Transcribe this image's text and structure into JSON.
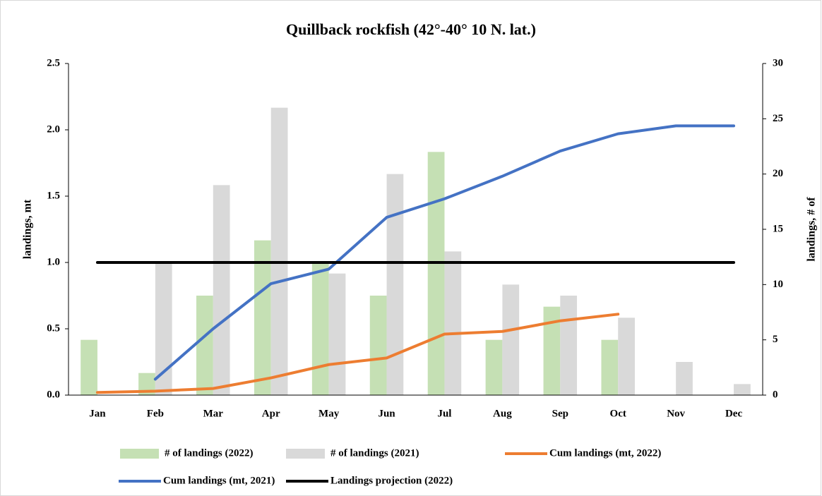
{
  "chart_data": {
    "type": "bar_line_combo",
    "title": "Quillback rockfish (42°-40° 10 N. lat.)",
    "y_label": "landings, mt",
    "y2_label": "landings, # of",
    "categories": [
      "Jan",
      "Feb",
      "Mar",
      "Apr",
      "May",
      "Jun",
      "Jul",
      "Aug",
      "Sep",
      "Oct",
      "Nov",
      "Dec"
    ],
    "ylim": [
      0,
      2.5
    ],
    "yticks": [
      {
        "value": 0,
        "label": "0.0"
      },
      {
        "value": 0.5,
        "label": "0.5"
      },
      {
        "value": 1,
        "label": "1.0"
      },
      {
        "value": 1.5,
        "label": "1.5"
      },
      {
        "value": 2,
        "label": "2.0"
      },
      {
        "value": 2.5,
        "label": "2.5"
      }
    ],
    "y2lim": [
      0,
      30
    ],
    "y2ticks": [
      0,
      5,
      10,
      15,
      20,
      25,
      30
    ],
    "series": [
      {
        "name": "# of landings (2022)",
        "kind": "bar",
        "axis": "y2",
        "color": "#c5e0b4",
        "values": [
          5,
          2,
          9,
          14,
          12,
          9,
          22,
          5,
          8,
          5,
          null,
          null
        ]
      },
      {
        "name": "# of landings (2021)",
        "kind": "bar",
        "axis": "y2",
        "color": "#d9d9d9",
        "values": [
          null,
          12,
          19,
          26,
          11,
          20,
          13,
          10,
          9,
          7,
          3,
          1
        ]
      },
      {
        "name": "Cum landings (mt, 2022)",
        "kind": "line",
        "color": "#ed7d31",
        "values": [
          0.02,
          0.03,
          0.05,
          0.13,
          0.23,
          0.28,
          0.46,
          0.48,
          0.56,
          0.61,
          null,
          null
        ]
      },
      {
        "name": "Cum landings (mt, 2021)",
        "kind": "line",
        "color": "#4472c4",
        "values": [
          null,
          0.12,
          0.5,
          0.84,
          0.95,
          1.34,
          1.48,
          1.65,
          1.84,
          1.97,
          2.03,
          2.03
        ]
      },
      {
        "name": "Landings projection (2022)",
        "kind": "line",
        "color": "#000000",
        "values": [
          1,
          1,
          1,
          1,
          1,
          1,
          1,
          1,
          1,
          1,
          1,
          1
        ]
      }
    ]
  }
}
